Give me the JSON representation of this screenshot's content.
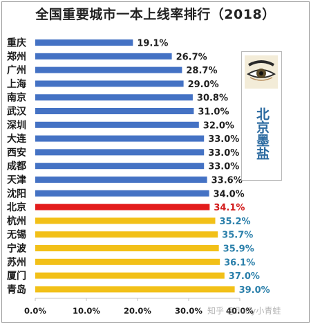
{
  "title": "全国重要城市一本上线率排行（2018）",
  "brand": {
    "text": "北京墨盐",
    "logo_icon": "eye-logo-icon"
  },
  "watermark": "知乎 @fluffy小青蛙",
  "colors": {
    "blue": "#4472c4",
    "red": "#e31c1c",
    "yellow": "#f2c018",
    "blue_text": "#1f1f1f",
    "red_text": "#d21b1b",
    "teal_text": "#2a7faa"
  },
  "chart_data": {
    "type": "bar",
    "orientation": "horizontal",
    "categories": [
      "重庆",
      "郑州",
      "广州",
      "上海",
      "南京",
      "武汉",
      "深圳",
      "大连",
      "西安",
      "成都",
      "天津",
      "沈阳",
      "北京",
      "杭州",
      "无锡",
      "宁波",
      "苏州",
      "厦门",
      "青岛"
    ],
    "values": [
      19.1,
      26.7,
      28.7,
      29.0,
      30.8,
      31.0,
      32.0,
      33.0,
      33.0,
      33.0,
      33.6,
      34.0,
      34.1,
      35.2,
      35.7,
      35.9,
      36.1,
      37.0,
      39.0
    ],
    "value_labels": [
      "19.1%",
      "26.7%",
      "28.7%",
      "29.0%",
      "30.8%",
      "31.0%",
      "32.0%",
      "33.0%",
      "33.0%",
      "33.0%",
      "33.6%",
      "34.0%",
      "34.1%",
      "35.2%",
      "35.7%",
      "35.9%",
      "36.1%",
      "37.0%",
      "39.0%"
    ],
    "bar_groups": [
      "blue",
      "blue",
      "blue",
      "blue",
      "blue",
      "blue",
      "blue",
      "blue",
      "blue",
      "blue",
      "blue",
      "blue",
      "red",
      "yellow",
      "yellow",
      "yellow",
      "yellow",
      "yellow",
      "yellow"
    ],
    "x_ticks": [
      0,
      10,
      20,
      30,
      40
    ],
    "x_tick_labels": [
      "0.0%",
      "10.0%",
      "20.0%",
      "30.0%",
      "40.0%"
    ],
    "xlim": [
      0,
      40
    ],
    "grid": false,
    "title": "全国重要城市一本上线率排行（2018）"
  }
}
